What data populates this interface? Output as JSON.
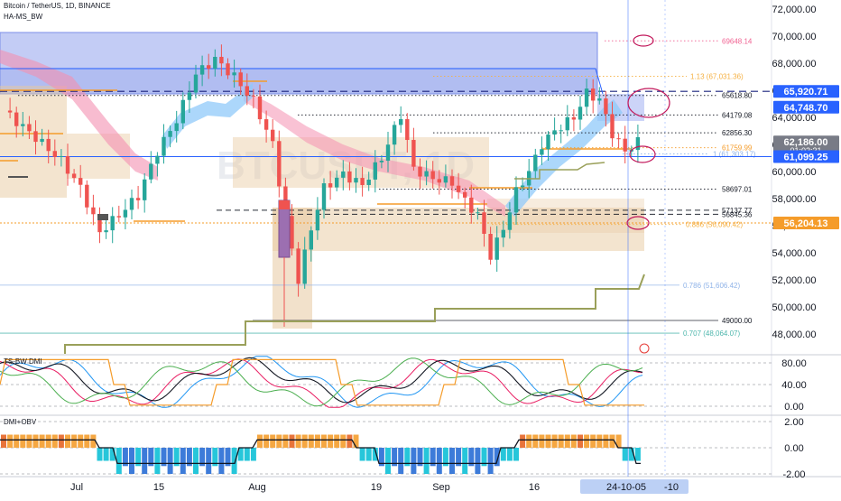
{
  "header": {
    "symbol_line": "Bitcoin / TetherUS, 1D, BINANCE",
    "indicator_label": "HA-MS_BW",
    "watermark": "BTCUSDT, 1D"
  },
  "colors": {
    "up_candle": "#26a69a",
    "down_candle": "#ef5350",
    "blue_zone": "#7b8ee8",
    "tan_zone": "#e8c9a0",
    "orange": "#f59c2a",
    "accent_blue": "#2962ff"
  },
  "chart_data": [
    {
      "type": "candlestick",
      "title": "Bitcoin / TetherUS, 1D, BINANCE",
      "y_axis": {
        "min": 46000,
        "max": 73000,
        "ticks": [
          "72,000.00",
          "70,000.00",
          "68,000.00",
          "66,000.00",
          "64,000.00",
          "62,000.00",
          "60,000.00",
          "58,000.00",
          "56,000.00",
          "54,000.00",
          "52,000.00",
          "50,000.00",
          "48,000.00"
        ]
      },
      "x_axis": {
        "ticks": [
          "Jul",
          "15",
          "Aug",
          "19",
          "Sep",
          "16"
        ],
        "cursor_label": "24-10-05",
        "cursor_suffix": "-10"
      },
      "price_badges": [
        {
          "label": "65,920.71",
          "value": 65920.71,
          "color": "#2962ff"
        },
        {
          "label": "64,748.70",
          "value": 64748.7,
          "color": "#2962ff"
        },
        {
          "label": "62,186.00",
          "value": 62186.0,
          "color": "#787b86",
          "sub": "01:02:31"
        },
        {
          "label": "61,099.25",
          "value": 61099.25,
          "color": "#2962ff"
        },
        {
          "label": "56,204.13",
          "value": 56204.13,
          "color": "#f59c2a"
        }
      ],
      "price_levels": [
        {
          "label": "69648.14",
          "value": 69648.14,
          "style": "dotted",
          "color": "#f06292"
        },
        {
          "label": "1.13 (67,031.36)",
          "value": 67031.36,
          "style": "dotted",
          "color": "#f5b041"
        },
        {
          "label": "65618.80",
          "value": 65618.8,
          "style": "dotted",
          "color": "#131722"
        },
        {
          "label": "64179.08",
          "value": 64179.08,
          "style": "dotted",
          "color": "#131722"
        },
        {
          "label": "62856.30",
          "value": 62856.3,
          "style": "dotted",
          "color": "#131722"
        },
        {
          "label": "61759.99",
          "value": 61759.99,
          "style": "dotted",
          "color": "#f59c2a"
        },
        {
          "label": "1 (61,303.17)",
          "value": 61303.17,
          "style": "dotted",
          "color": "#8fb3e8"
        },
        {
          "label": "58697.01",
          "value": 58697.01,
          "style": "dotted",
          "color": "#131722"
        },
        {
          "label": "57137.77",
          "value": 57137.77,
          "style": "dashed",
          "color": "#131722"
        },
        {
          "label": "56845.36",
          "value": 56845.36,
          "style": "dashed",
          "color": "#131722"
        },
        {
          "label": "0.886 (56,090.42)",
          "value": 56090.42,
          "style": "dotted",
          "color": "#f5b041"
        },
        {
          "label": "0.786 (51,606.42)",
          "value": 51606.42,
          "style": "solid",
          "color": "#8fb3e8"
        },
        {
          "label": "49000.00",
          "value": 49000.0,
          "style": "solid",
          "color": "#131722"
        },
        {
          "label": "0.707 (48,064.07)",
          "value": 48064.07,
          "style": "solid",
          "color": "#4db6ac"
        }
      ]
    },
    {
      "type": "line",
      "title": "TS-BW DMI",
      "y_axis": {
        "min": -5,
        "max": 95,
        "ticks": [
          "80.00",
          "40.00",
          "0.00"
        ]
      }
    },
    {
      "type": "bar",
      "title": "DMI+OBV",
      "y_axis": {
        "min": -2.4,
        "max": 2.4,
        "ticks": [
          "2.00",
          "0.00",
          "-2.00"
        ]
      }
    }
  ]
}
